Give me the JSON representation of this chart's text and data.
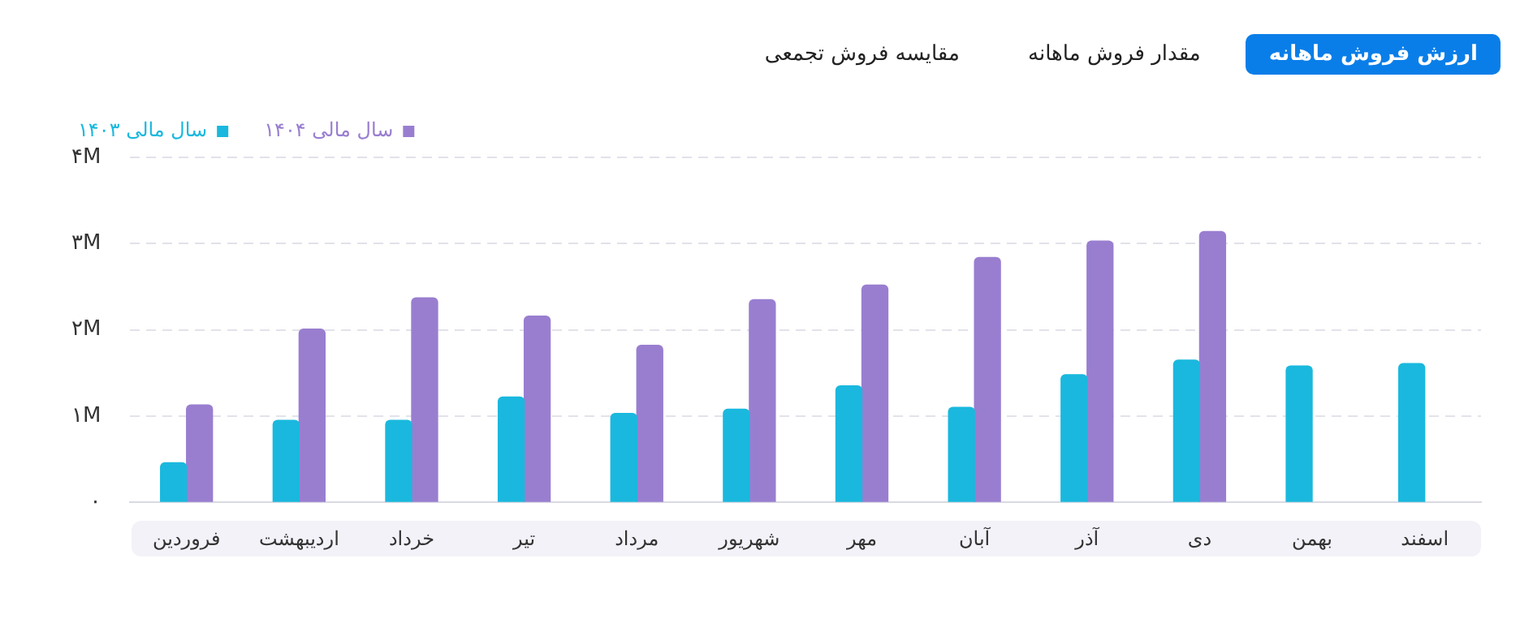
{
  "chart_data": {
    "type": "bar",
    "annotations": [
      "ارزش فروش ماهانه",
      "مقدار فروش ماهانه",
      "مقایسه فروش تجمعی"
    ],
    "categories": [
      "فروردین",
      "اردیبهشت",
      "خرداد",
      "تیر",
      "مرداد",
      "شهریور",
      "مهر",
      "آبان",
      "آذر",
      "دی",
      "بهمن",
      "اسفند"
    ],
    "series": [
      {
        "name": "سال مالی ۱۴۰۳",
        "color": "#1ab8de",
        "values": [
          0.46,
          0.95,
          0.95,
          1.22,
          1.03,
          1.08,
          1.35,
          1.1,
          1.48,
          1.65,
          1.58,
          1.61
        ]
      },
      {
        "name": "سال مالی ۱۴۰۴",
        "color": "#997ed0",
        "values": [
          1.13,
          2.01,
          2.37,
          2.16,
          1.82,
          2.35,
          2.52,
          2.84,
          3.03,
          3.14,
          null,
          null
        ]
      }
    ],
    "ylim": [
      0,
      4
    ],
    "yticks": [
      {
        "value": 0,
        "label": "۰"
      },
      {
        "value": 1,
        "label": "۱M"
      },
      {
        "value": 2,
        "label": "۲M"
      },
      {
        "value": 3,
        "label": "۳M"
      },
      {
        "value": 4,
        "label": "۴M"
      }
    ],
    "grid": "y",
    "legend": "top left"
  }
}
